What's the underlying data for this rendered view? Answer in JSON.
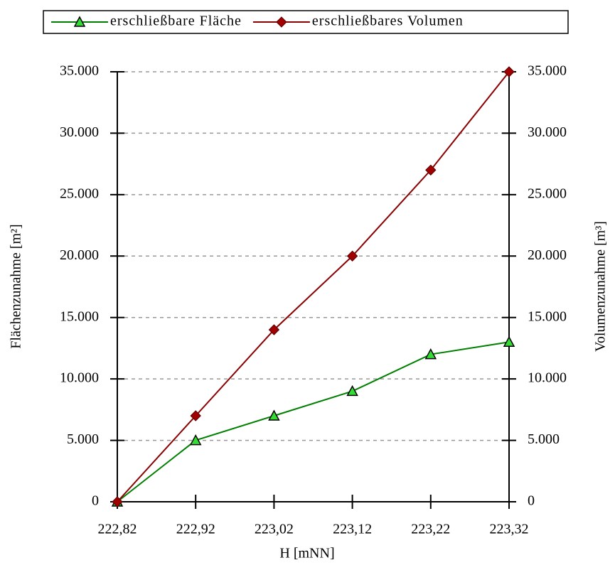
{
  "chart_data": {
    "type": "line",
    "x": [
      222.82,
      222.92,
      223.02,
      223.12,
      223.22,
      223.32
    ],
    "xlim": [
      222.82,
      223.32
    ],
    "xticks": [
      {
        "value": 222.82,
        "label": "222,82"
      },
      {
        "value": 222.92,
        "label": "222,92"
      },
      {
        "value": 223.02,
        "label": "223,02"
      },
      {
        "value": 223.12,
        "label": "223,12"
      },
      {
        "value": 223.22,
        "label": "223,22"
      },
      {
        "value": 223.32,
        "label": "223,32"
      }
    ],
    "x_label": "H [mNN]",
    "y_label": "Flächenzunahme [m²]",
    "y2_label": "Volumenzunahme [m³]",
    "ylim": [
      0,
      35000
    ],
    "yticks": [
      0,
      {
        "value": 5000,
        "label": "5.000"
      },
      {
        "value": 10000,
        "label": "10.000"
      },
      {
        "value": 15000,
        "label": "15.000"
      },
      {
        "value": 20000,
        "label": "20.000"
      },
      {
        "value": 25000,
        "label": "25.000"
      },
      {
        "value": 30000,
        "label": "30.000"
      },
      {
        "value": 35000,
        "label": "35.000"
      }
    ],
    "y2lim": [
      0,
      35000
    ],
    "y2ticks": [
      0,
      {
        "value": 5000,
        "label": "5.000"
      },
      {
        "value": 10000,
        "label": "10.000"
      },
      {
        "value": 15000,
        "label": "15.000"
      },
      {
        "value": 20000,
        "label": "20.000"
      },
      {
        "value": 25000,
        "label": "25.000"
      },
      {
        "value": 30000,
        "label": "30.000"
      },
      {
        "value": 35000,
        "label": "35.000"
      }
    ],
    "grid": true,
    "legend": "top",
    "series": [
      {
        "name": "erschließbare Fläche",
        "color": "#008000",
        "marker_color": "#33dd33",
        "marker": "triangle",
        "values": [
          0,
          5000,
          7000,
          9000,
          12000,
          13000
        ],
        "axis": "y"
      },
      {
        "name": "erschließbares Volumen",
        "color": "#8b0000",
        "marker_color": "#a00000",
        "marker": "diamond",
        "values": [
          0,
          7000,
          14000,
          20000,
          27000,
          35000
        ],
        "axis": "y2"
      }
    ]
  }
}
